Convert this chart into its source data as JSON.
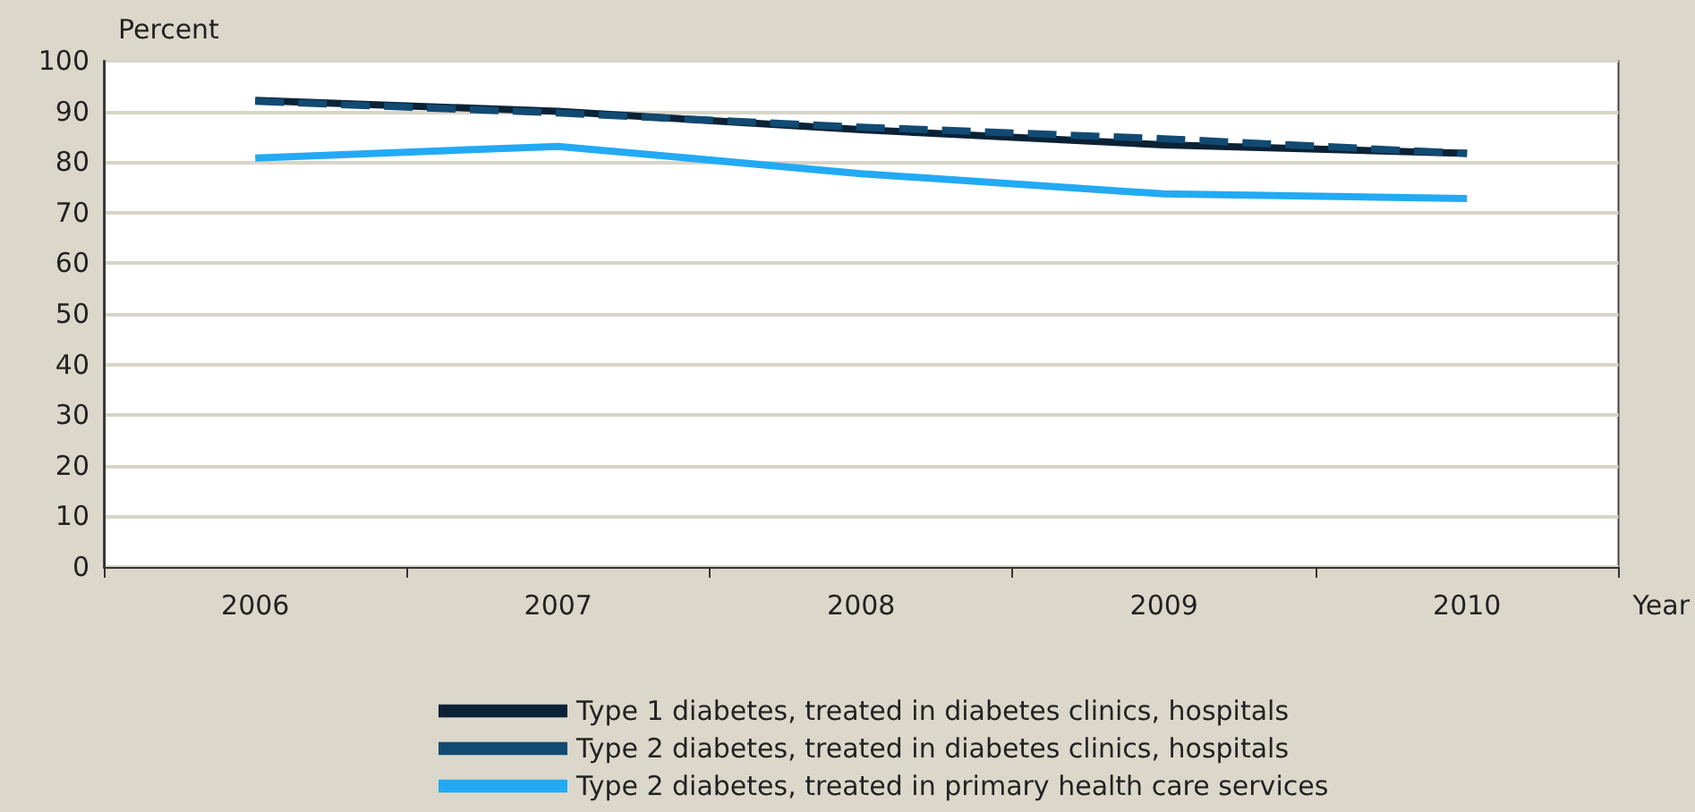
{
  "chart_data": {
    "type": "line",
    "ylabel": "Percent",
    "xlabel": "Year",
    "categories": [
      "2006",
      "2007",
      "2008",
      "2009",
      "2010"
    ],
    "series": [
      {
        "name": "Type 1 diabetes, treated in diabetes clinics, hospitals",
        "color": "#0b2236",
        "line_style": "solid",
        "values": [
          92.2,
          90,
          86.4,
          83.4,
          81.7
        ]
      },
      {
        "name": "Type 2 diabetes, treated in diabetes clinics, hospitals",
        "color": "#114a72",
        "line_style": "dashed",
        "values": [
          92,
          89.7,
          86.9,
          84.6,
          81.7
        ]
      },
      {
        "name": "Type 2 diabetes, treated in primary health care services",
        "color": "#22aaf5",
        "line_style": "solid",
        "values": [
          80.8,
          83.1,
          77.7,
          73.7,
          72.8
        ]
      }
    ],
    "ylim": [
      0,
      100
    ],
    "yticks": [
      0,
      10,
      20,
      30,
      40,
      50,
      60,
      70,
      80,
      90,
      100
    ],
    "grid": "y",
    "legend": "bottom",
    "marker": "none"
  }
}
